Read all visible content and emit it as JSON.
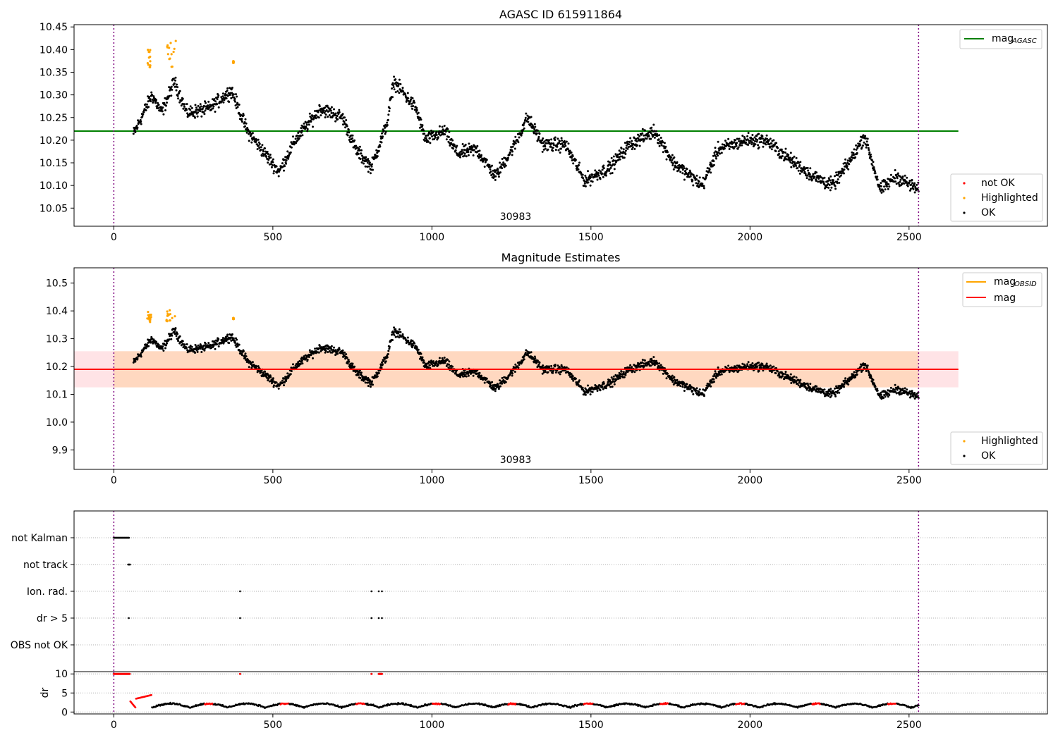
{
  "chart_data": [
    {
      "type": "scatter",
      "title": "AGASC ID 615911864",
      "annotation": "30983",
      "xlim": [
        -125,
        2935
      ],
      "ylim": [
        10.01,
        10.455
      ],
      "x_ticks": [
        0,
        500,
        1000,
        1500,
        2000,
        2500
      ],
      "y_ticks": [
        10.05,
        10.1,
        10.15,
        10.2,
        10.25,
        10.3,
        10.35,
        10.4,
        10.45
      ],
      "y_tick_labels": [
        "10.05",
        "10.10",
        "10.15",
        "10.20",
        "10.25",
        "10.30",
        "10.35",
        "10.40",
        "10.45"
      ],
      "vlines": [
        0,
        2530
      ],
      "hlines": [
        {
          "y": 10.22,
          "x_range": [
            -125,
            2655
          ],
          "color": "#008000"
        }
      ],
      "legend_top": {
        "position": "top-right",
        "entries": [
          {
            "name": "mag",
            "sub": "AGASC",
            "color": "#008000"
          }
        ]
      },
      "legend_bottom": {
        "position": "bottom-right",
        "entries": [
          {
            "name": "not OK",
            "color": "#ff0000"
          },
          {
            "name": "Highlighted",
            "color": "#ffa500"
          },
          {
            "name": "OK",
            "color": "#000000"
          }
        ]
      },
      "series": [
        {
          "name": "OK",
          "color": "#000000",
          "x_range": [
            60,
            2530
          ],
          "trend": [
            [
              60,
              10.21
            ],
            [
              120,
              10.3
            ],
            [
              150,
              10.26
            ],
            [
              190,
              10.33
            ],
            [
              230,
              10.26
            ],
            [
              300,
              10.27
            ],
            [
              370,
              10.31
            ],
            [
              420,
              10.22
            ],
            [
              520,
              10.13
            ],
            [
              570,
              10.2
            ],
            [
              650,
              10.27
            ],
            [
              720,
              10.25
            ],
            [
              760,
              10.18
            ],
            [
              810,
              10.14
            ],
            [
              860,
              10.24
            ],
            [
              880,
              10.33
            ],
            [
              950,
              10.27
            ],
            [
              980,
              10.2
            ],
            [
              1040,
              10.22
            ],
            [
              1080,
              10.17
            ],
            [
              1140,
              10.18
            ],
            [
              1200,
              10.12
            ],
            [
              1260,
              10.19
            ],
            [
              1300,
              10.25
            ],
            [
              1350,
              10.19
            ],
            [
              1420,
              10.19
            ],
            [
              1480,
              10.11
            ],
            [
              1560,
              10.14
            ],
            [
              1620,
              10.19
            ],
            [
              1700,
              10.22
            ],
            [
              1760,
              10.15
            ],
            [
              1850,
              10.1
            ],
            [
              1900,
              10.18
            ],
            [
              1990,
              10.2
            ],
            [
              2050,
              10.2
            ],
            [
              2120,
              10.16
            ],
            [
              2200,
              10.12
            ],
            [
              2260,
              10.1
            ],
            [
              2320,
              10.16
            ],
            [
              2360,
              10.21
            ],
            [
              2410,
              10.09
            ],
            [
              2460,
              10.12
            ],
            [
              2530,
              10.09
            ]
          ]
        },
        {
          "name": "Highlighted",
          "color": "#ffa500",
          "clusters": [
            [
              105,
              118,
              10.36,
              10.4
            ],
            [
              165,
              195,
              10.36,
              10.42
            ],
            [
              375,
              377,
              10.37,
              10.375
            ]
          ]
        }
      ]
    },
    {
      "type": "scatter",
      "title": "Magnitude Estimates",
      "annotation": "30983",
      "xlim": [
        -125,
        2935
      ],
      "ylim": [
        9.83,
        10.555
      ],
      "x_ticks": [
        0,
        500,
        1000,
        1500,
        2000,
        2500
      ],
      "y_ticks": [
        9.9,
        10.0,
        10.1,
        10.2,
        10.3,
        10.4,
        10.5
      ],
      "y_tick_labels": [
        "9.9",
        "10.0",
        "10.1",
        "10.2",
        "10.3",
        "10.4",
        "10.5"
      ],
      "vlines": [
        0,
        2530
      ],
      "hlines": [
        {
          "y": 10.19,
          "x_range": [
            -125,
            2655
          ],
          "color": "#ff0000"
        }
      ],
      "band": {
        "y0": 10.125,
        "y1": 10.255,
        "x_range": [
          -125,
          2655
        ],
        "color": "#ffb0b8"
      },
      "band_inner": {
        "y0": 10.125,
        "y1": 10.255,
        "x_range": [
          0,
          2530
        ],
        "color": "#ffcfa0"
      },
      "legend_top": {
        "position": "top-right",
        "entries": [
          {
            "name": "mag",
            "sub": "OBSID",
            "color": "#ffa500"
          },
          {
            "name": "mag",
            "color": "#ff0000"
          }
        ]
      },
      "legend_bottom": {
        "position": "bottom-right",
        "entries": [
          {
            "name": "Highlighted",
            "color": "#ffa500"
          },
          {
            "name": "OK",
            "color": "#000000"
          }
        ]
      }
    },
    {
      "type": "scatter",
      "xlim": [
        -125,
        2935
      ],
      "categories": [
        "not Kalman",
        "not track",
        "Ion. rad.",
        "dr > 5",
        "OBS not OK"
      ],
      "flags": [
        {
          "category": "not Kalman",
          "x": [
            [
              0,
              48
            ]
          ]
        },
        {
          "category": "not track",
          "x": [
            [
              45,
              52
            ]
          ]
        },
        {
          "category": "Ion. rad.",
          "x": [
            [
              397
            ],
            [
              810
            ],
            [
              833
            ],
            [
              843
            ]
          ]
        },
        {
          "category": "dr > 5",
          "x": [
            [
              47
            ],
            [
              397
            ],
            [
              810
            ],
            [
              833
            ],
            [
              843
            ]
          ]
        }
      ],
      "vlines": [
        0,
        2530
      ]
    },
    {
      "type": "scatter",
      "ylabel": "dr",
      "xlim": [
        -125,
        2935
      ],
      "ylim": [
        -0.5,
        10.6
      ],
      "y_ticks": [
        0,
        5,
        10
      ],
      "y_tick_labels": [
        "0",
        "5",
        "10"
      ],
      "x_ticks": [
        0,
        500,
        1000,
        1500,
        2000,
        2500
      ],
      "vlines": [
        0,
        2530
      ],
      "red_points": [
        [
          0,
          50,
          10.0
        ],
        [
          397,
          397,
          10.0
        ],
        [
          810,
          810,
          10.0
        ],
        [
          833,
          843,
          10.0
        ]
      ]
    }
  ],
  "x_tick_labels": [
    "0",
    "500",
    "1000",
    "1500",
    "2000",
    "2500"
  ]
}
